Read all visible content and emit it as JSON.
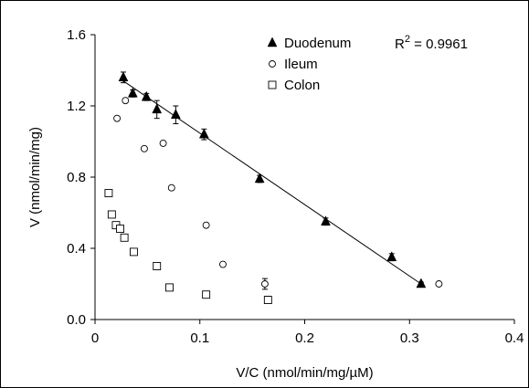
{
  "chart_data": {
    "type": "scatter",
    "xlabel": "V/C (nmol/min/mg/µM)",
    "ylabel": "V (nmol/min/mg)",
    "xlim": [
      0,
      0.4
    ],
    "ylim": [
      0,
      1.6
    ],
    "x_ticks": [
      "0",
      "0.1",
      "0.2",
      "0.3",
      "0.4"
    ],
    "y_ticks": [
      "0.0",
      "0.4",
      "0.8",
      "1.2",
      "1.6"
    ],
    "x_tick_values": [
      0,
      0.1,
      0.2,
      0.3,
      0.4
    ],
    "y_tick_values": [
      0,
      0.4,
      0.8,
      1.2,
      1.6
    ],
    "grid": false,
    "legend_position": "top-right",
    "r2_label": {
      "prefix": "R",
      "sup": "2",
      "suffix": " = 0.9961"
    },
    "series": [
      {
        "name": "Duodenum",
        "marker": "filled-triangle",
        "color": "#000000",
        "points": [
          {
            "x": 0.027,
            "y": 1.36,
            "err": 0.03
          },
          {
            "x": 0.036,
            "y": 1.27,
            "err": 0.02
          },
          {
            "x": 0.049,
            "y": 1.25,
            "err": 0.02
          },
          {
            "x": 0.059,
            "y": 1.18,
            "err": 0.05
          },
          {
            "x": 0.077,
            "y": 1.15,
            "err": 0.05
          },
          {
            "x": 0.104,
            "y": 1.04,
            "err": 0.03
          },
          {
            "x": 0.157,
            "y": 0.79,
            "err": 0.02
          },
          {
            "x": 0.22,
            "y": 0.55,
            "err": 0.02
          },
          {
            "x": 0.283,
            "y": 0.35,
            "err": 0.02
          },
          {
            "x": 0.311,
            "y": 0.2,
            "err": 0.01
          }
        ],
        "fit_line": {
          "x": [
            0.027,
            0.311
          ],
          "y": [
            1.34,
            0.2
          ]
        }
      },
      {
        "name": "Ileum",
        "marker": "open-circle",
        "color": "#000000",
        "points": [
          {
            "x": 0.021,
            "y": 1.13
          },
          {
            "x": 0.029,
            "y": 1.23
          },
          {
            "x": 0.047,
            "y": 0.96
          },
          {
            "x": 0.065,
            "y": 0.99
          },
          {
            "x": 0.073,
            "y": 0.74
          },
          {
            "x": 0.106,
            "y": 0.53
          },
          {
            "x": 0.122,
            "y": 0.31
          },
          {
            "x": 0.162,
            "y": 0.2,
            "err": 0.03
          },
          {
            "x": 0.328,
            "y": 0.2
          }
        ]
      },
      {
        "name": "Colon",
        "marker": "open-square",
        "color": "#000000",
        "points": [
          {
            "x": 0.013,
            "y": 0.71
          },
          {
            "x": 0.016,
            "y": 0.59
          },
          {
            "x": 0.02,
            "y": 0.53
          },
          {
            "x": 0.024,
            "y": 0.51
          },
          {
            "x": 0.028,
            "y": 0.46
          },
          {
            "x": 0.037,
            "y": 0.38
          },
          {
            "x": 0.059,
            "y": 0.3
          },
          {
            "x": 0.071,
            "y": 0.18
          },
          {
            "x": 0.106,
            "y": 0.14
          },
          {
            "x": 0.165,
            "y": 0.11,
            "err": 0.02
          }
        ]
      }
    ]
  }
}
